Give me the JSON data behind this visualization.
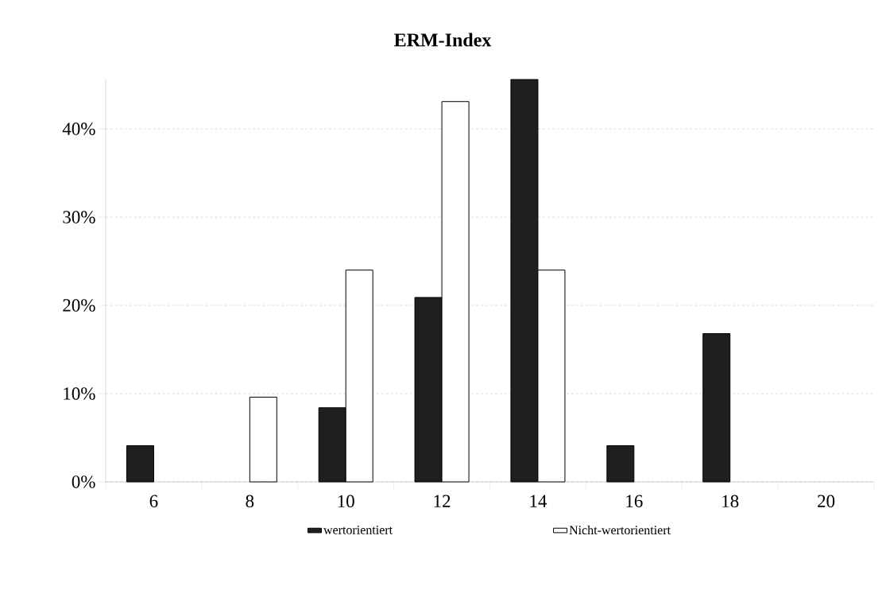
{
  "chart_data": {
    "type": "bar",
    "title": "ERM-Index",
    "categories": [
      "6",
      "8",
      "10",
      "12",
      "14",
      "16",
      "18",
      "20"
    ],
    "series": [
      {
        "name": "wertorientiert",
        "color": "#1f1f1f",
        "values": [
          4.1,
          0,
          8.4,
          20.9,
          45.6,
          4.1,
          16.8,
          0
        ]
      },
      {
        "name": "Nicht-wertorientiert",
        "color": "#ffffff",
        "values": [
          0,
          9.6,
          24.0,
          43.1,
          24.0,
          0,
          0,
          0
        ]
      }
    ],
    "ylim": [
      0,
      45.6
    ],
    "yticks": [
      {
        "value": 0,
        "label": "0%"
      },
      {
        "value": 10,
        "label": "10%"
      },
      {
        "value": 20,
        "label": "20%"
      },
      {
        "value": 30,
        "label": "30%"
      },
      {
        "value": 40,
        "label": "40%"
      }
    ],
    "grid": "y",
    "legend": "bottom"
  }
}
